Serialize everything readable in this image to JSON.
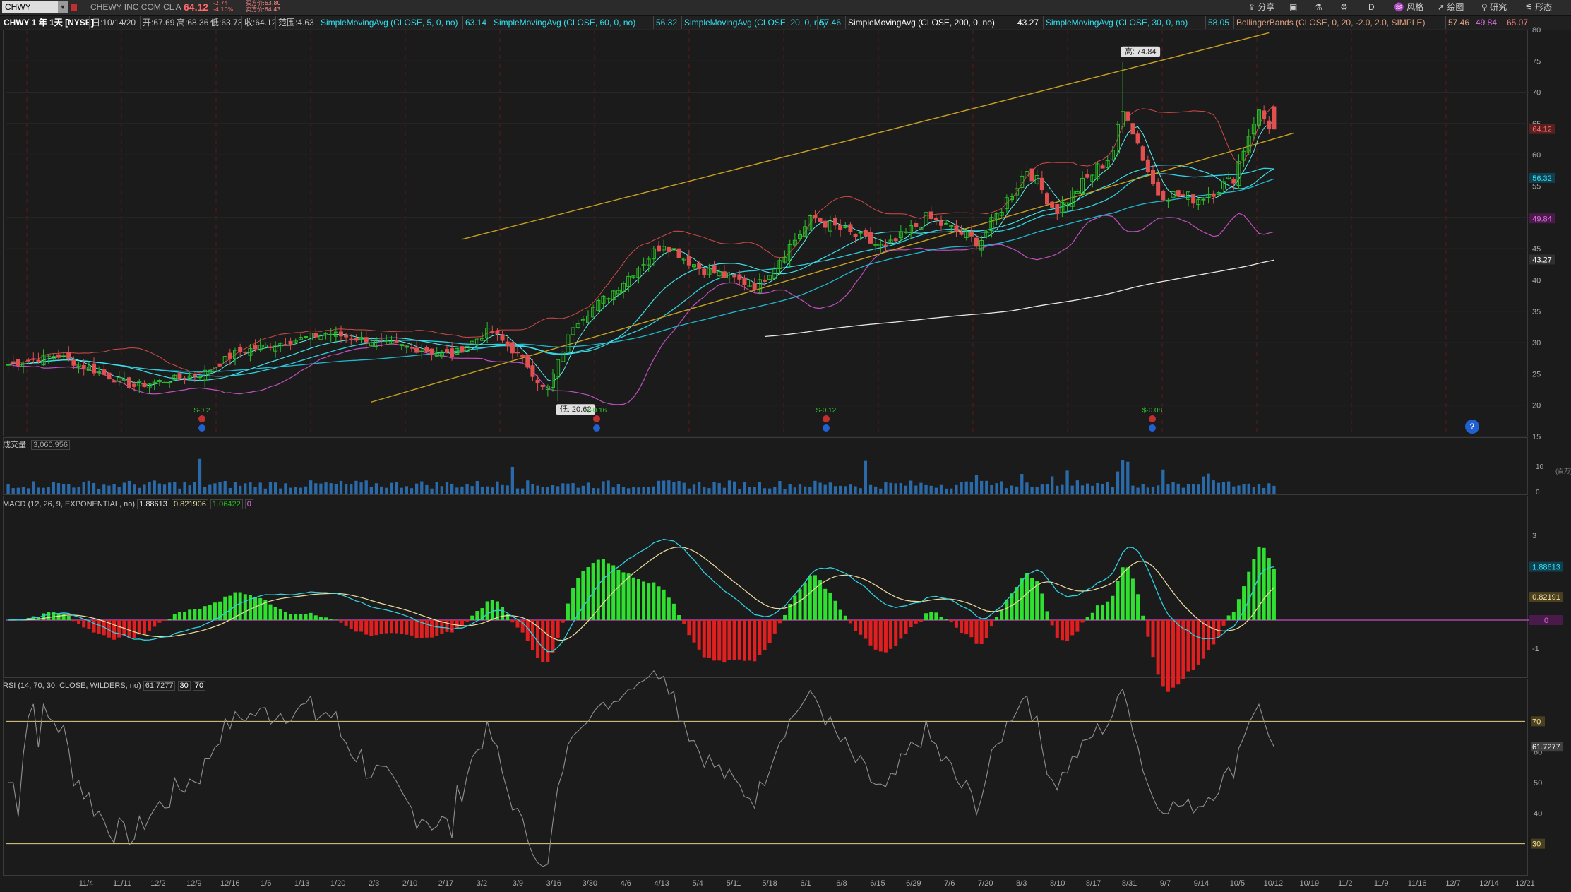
{
  "symbol": "CHWY",
  "company": "CHEWY INC COM CL A",
  "last": "64.12",
  "change": "-2.74",
  "change_pct": "-4.10%",
  "bid_label": "买方价:63.80",
  "ask_label": "卖方价:64.43",
  "toolbar": [
    "分享",
    "",
    "",
    "",
    "D",
    "风格",
    "绘图",
    "研究",
    "形态"
  ],
  "chart_title": "CHWY 1 年 1天 [NYSE]",
  "ohlc": [
    {
      "label": "日:10/14/20",
      "color": "#c8c8c8"
    },
    {
      "label": "开:67.69",
      "color": "#c8c8c8"
    },
    {
      "label": "高:68.36",
      "color": "#c8c8c8"
    },
    {
      "label": "低:63.73",
      "color": "#c8c8c8"
    },
    {
      "label": "收:64.12",
      "color": "#c8c8c8"
    },
    {
      "label": "范围:4.63",
      "color": "#c8c8c8"
    }
  ],
  "studies": [
    {
      "label": "SimpleMovingAvg (CLOSE, 5, 0, no)",
      "value": "63.14"
    },
    {
      "label": "SimpleMovingAvg (CLOSE, 60, 0, no)",
      "value": "56.32"
    },
    {
      "label": "SimpleMovingAvg (CLOSE, 20, 0, no)",
      "value": "57.46"
    },
    {
      "label": "SimpleMovingAvg (CLOSE, 200, 0, no)",
      "value": "43.27"
    },
    {
      "label": "SimpleMovingAvg (CLOSE, 30, 0, no)",
      "value": "58.05"
    },
    {
      "label": "BollingerBands (CLOSE, 0, 20, -2.0, 2.0, SIMPLE)",
      "value": "57.46",
      "value2": "49.84",
      "value3": "65.07"
    }
  ],
  "price_pane": {
    "high_label": "高: 74.84",
    "low_label": "低: 20.62",
    "price_tags": [
      {
        "value": "64.12",
        "price": 64.12,
        "bg": "#5a2020",
        "fg": "#ff7070"
      },
      {
        "value": "56.32",
        "price": 56.32,
        "bg": "#104050",
        "fg": "#30e0f0"
      },
      {
        "value": "49.84",
        "price": 49.84,
        "bg": "#4a1a4a",
        "fg": "#e070e0"
      },
      {
        "value": "43.27",
        "price": 43.27,
        "bg": "#303030",
        "fg": "#ffffff"
      }
    ],
    "earnings": [
      "$-0.2",
      "$-0.16",
      "$-0.12",
      "$-0.08"
    ],
    "help": "?"
  },
  "volume_pane": {
    "title": "成交量",
    "value": "3,060,956",
    "axis_label": "(百万)",
    "ticks": [
      "10",
      "0"
    ]
  },
  "macd_pane": {
    "title": "MACD (12, 26, 9, EXPONENTIAL, no)",
    "v1": "1.88613",
    "v2": "0.821906",
    "v3": "1.06422",
    "v4": "0",
    "tags": [
      {
        "value": "1.88613",
        "y": 1.886,
        "bg": "#104050",
        "fg": "#30e0f0"
      },
      {
        "value": "0.82191",
        "y": 0.822,
        "bg": "#4a4020",
        "fg": "#f0e0a0"
      },
      {
        "value": "0",
        "y": 0,
        "bg": "#4a1a4a",
        "fg": "#e070e0"
      }
    ]
  },
  "rsi_pane": {
    "title": "RSI (14, 70, 30, CLOSE, WILDERS, no)",
    "v1": "61.7277",
    "v2": "30",
    "v3": "70",
    "tags": [
      {
        "value": "70",
        "y": 70,
        "bg": "#4a4020",
        "fg": "#f0e0a0"
      },
      {
        "value": "61.7277",
        "y": 61.73,
        "bg": "#404040",
        "fg": "#ffffff"
      },
      {
        "value": "30",
        "y": 30,
        "bg": "#4a4020",
        "fg": "#f0e0a0"
      }
    ]
  },
  "x_axis": [
    "11/4",
    "11/11",
    "12/2",
    "12/9",
    "12/16",
    "1/6",
    "1/13",
    "1/20",
    "2/3",
    "2/10",
    "2/17",
    "3/2",
    "3/9",
    "3/16",
    "3/30",
    "4/6",
    "4/13",
    "5/4",
    "5/11",
    "5/18",
    "6/1",
    "6/8",
    "6/15",
    "6/29",
    "7/6",
    "7/20",
    "8/3",
    "8/10",
    "8/17",
    "8/31",
    "9/7",
    "9/14",
    "10/5",
    "10/12",
    "10/19",
    "11/2",
    "11/9",
    "11/16",
    "12/7",
    "12/14",
    "12/21"
  ],
  "chart_data": [
    {
      "type": "candlestick",
      "title": "CHWY 1 年 1天 [NYSE]",
      "ylim": [
        15,
        80
      ],
      "yticks": [
        15,
        20,
        25,
        30,
        35,
        40,
        45,
        50,
        55,
        60,
        65,
        70,
        75,
        80
      ],
      "keypoints": [
        {
          "date": "2019-10-15",
          "close": 26.5
        },
        {
          "date": "2019-10-29",
          "close": 28
        },
        {
          "date": "2019-11-20",
          "close": 23
        },
        {
          "date": "2019-12-10",
          "close": 25
        },
        {
          "date": "2019-12-20",
          "close": 28.5
        },
        {
          "date": "2020-01-15",
          "close": 31.5
        },
        {
          "date": "2020-02-20",
          "close": 28
        },
        {
          "date": "2020-03-02",
          "close": 32
        },
        {
          "date": "2020-03-12",
          "close": 27
        },
        {
          "date": "2020-03-18",
          "close": 22
        },
        {
          "date": "2020-03-26",
          "close": 33
        },
        {
          "date": "2020-04-06",
          "close": 38
        },
        {
          "date": "2020-04-21",
          "close": 46
        },
        {
          "date": "2020-05-01",
          "close": 42
        },
        {
          "date": "2020-05-18",
          "close": 39
        },
        {
          "date": "2020-06-03",
          "close": 50
        },
        {
          "date": "2020-06-24",
          "close": 45
        },
        {
          "date": "2020-07-06",
          "close": 50
        },
        {
          "date": "2020-07-21",
          "close": 46
        },
        {
          "date": "2020-08-04",
          "close": 58
        },
        {
          "date": "2020-08-12",
          "close": 51
        },
        {
          "date": "2020-08-28",
          "close": 60
        },
        {
          "date": "2020-09-01",
          "close": 68
        },
        {
          "date": "2020-09-04",
          "close": 63
        },
        {
          "date": "2020-09-10",
          "close": 54
        },
        {
          "date": "2020-09-22",
          "close": 53
        },
        {
          "date": "2020-10-02",
          "close": 56
        },
        {
          "date": "2020-10-09",
          "close": 66.9
        },
        {
          "date": "2020-10-14",
          "close": 64.12
        }
      ],
      "high": 74.84,
      "low": 20.62,
      "series": [
        {
          "name": "SimpleMovingAvg (CLOSE, 5, 0, no)",
          "last": 63.14
        },
        {
          "name": "SimpleMovingAvg (CLOSE, 60, 0, no)",
          "last": 56.32
        },
        {
          "name": "SimpleMovingAvg (CLOSE, 20, 0, no)",
          "last": 57.46
        },
        {
          "name": "SimpleMovingAvg (CLOSE, 200, 0, no)",
          "last": 43.27
        },
        {
          "name": "SimpleMovingAvg (CLOSE, 30, 0, no)",
          "last": 58.05
        },
        {
          "name": "BollingerBands (CLOSE, 0, 20, -2.0, 2.0, SIMPLE)",
          "mid": 57.46,
          "lower": 49.84,
          "upper": 65.07
        }
      ]
    },
    {
      "type": "bar",
      "title": "成交量",
      "ylim": [
        0,
        15
      ],
      "last": 3060956
    },
    {
      "type": "line",
      "title": "MACD (12, 26, 9, EXPONENTIAL, no)",
      "ylim": [
        -2,
        4
      ],
      "yticks": [
        -1,
        3
      ],
      "value": 1.88613,
      "avg": 0.821906,
      "diff": 1.06422
    },
    {
      "type": "line",
      "title": "RSI (14, 70, 30, CLOSE, WILDERS, no)",
      "ylim": [
        20,
        80
      ],
      "yticks": [
        30,
        40,
        50,
        60,
        70
      ],
      "value": 61.7277,
      "overbought": 70,
      "oversold": 30
    }
  ]
}
